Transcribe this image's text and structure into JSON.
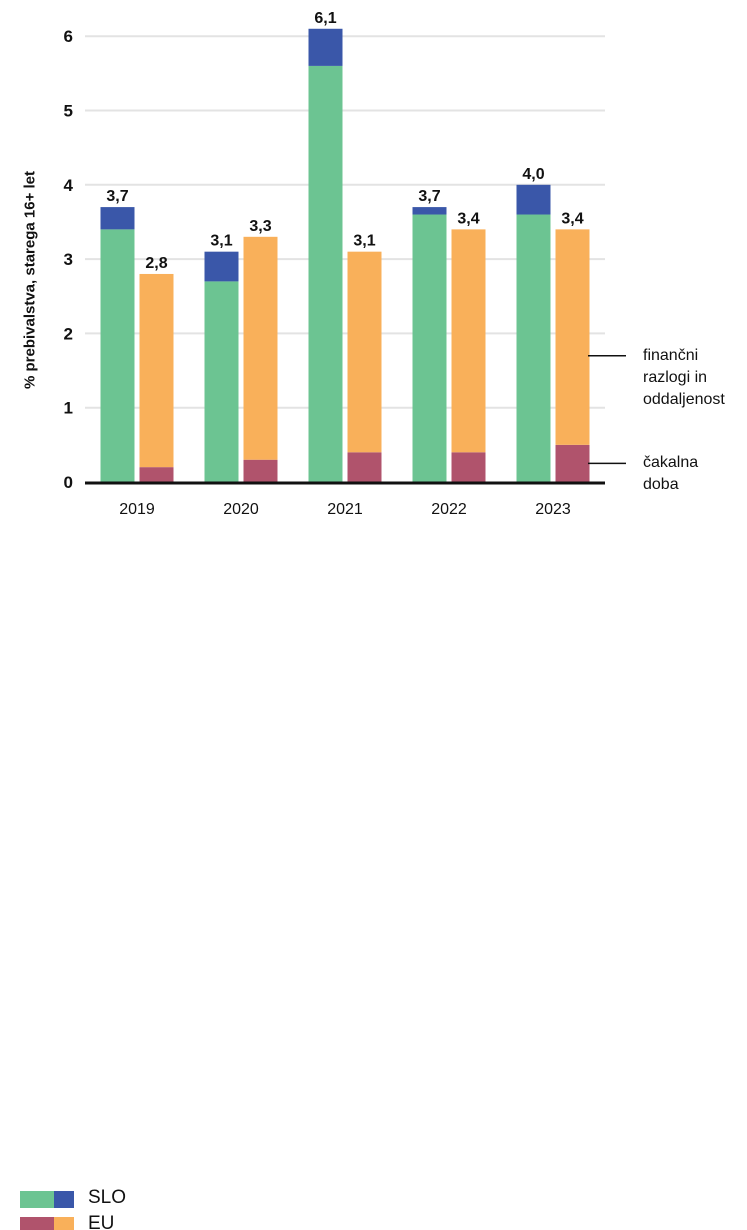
{
  "chart_data": {
    "type": "bar",
    "stacked": true,
    "grouped": true,
    "ylabel": "% prebivalstva, starega 16+ let",
    "ylim": [
      0,
      6.3
    ],
    "yticks": [
      "0",
      "1",
      "2",
      "3",
      "4",
      "5",
      "6"
    ],
    "grid": true,
    "categories": [
      "2019",
      "2020",
      "2021",
      "2022",
      "2023"
    ],
    "groups": [
      {
        "name": "SLO",
        "components": [
          {
            "part": "financial",
            "color": "#6cc492",
            "values": [
              3.4,
              2.7,
              5.6,
              3.6,
              3.6
            ]
          },
          {
            "part": "waiting",
            "color": "#3a57a9",
            "values": [
              0.3,
              0.4,
              0.5,
              0.1,
              0.4
            ]
          }
        ],
        "totals": [
          "3,7",
          "3,1",
          "6,1",
          "3,7",
          "4,0"
        ]
      },
      {
        "name": "EU",
        "components": [
          {
            "part": "waiting",
            "color": "#b0536c",
            "values": [
              0.2,
              0.3,
              0.4,
              0.4,
              0.5
            ]
          },
          {
            "part": "financial",
            "color": "#f9b05a",
            "values": [
              2.6,
              3.0,
              2.7,
              3.0,
              2.9
            ]
          }
        ],
        "totals": [
          "2,8",
          "3,3",
          "3,1",
          "3,4",
          "3,4"
        ]
      }
    ],
    "annotations": [
      {
        "lines": [
          "finančni",
          "razlogi in",
          "oddaljenost"
        ],
        "at_value": 1.7
      },
      {
        "lines": [
          "čakalna",
          "doba"
        ],
        "at_value": 0.25
      }
    ],
    "legend_position": "bottom-left"
  },
  "legend": [
    {
      "label": "SLO",
      "color_a": "#6cc492",
      "color_b": "#3a57a9"
    },
    {
      "label": "EU",
      "color_a": "#b0536c",
      "color_b": "#f9b05a"
    }
  ]
}
